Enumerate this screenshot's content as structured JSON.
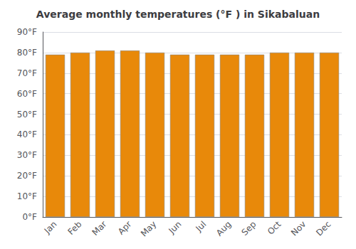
{
  "chart_data": {
    "type": "bar",
    "title": "Average monthly temperatures (°F ) in Sikabaluan",
    "categories": [
      "Jan",
      "Feb",
      "Mar",
      "Apr",
      "May",
      "Jun",
      "Jul",
      "Aug",
      "Sep",
      "Oct",
      "Nov",
      "Dec"
    ],
    "values": [
      79,
      80,
      81,
      81,
      80,
      79,
      79,
      79,
      79,
      80,
      80,
      80
    ],
    "color": "#E8890A",
    "ylim": [
      0,
      90
    ],
    "yticks": [
      {
        "value": 0,
        "label": "0°F"
      },
      {
        "value": 10,
        "label": "10°F"
      },
      {
        "value": 20,
        "label": "20°F"
      },
      {
        "value": 30,
        "label": "30°F"
      },
      {
        "value": 40,
        "label": "40°F"
      },
      {
        "value": 50,
        "label": "50°F"
      },
      {
        "value": 60,
        "label": "60°F"
      },
      {
        "value": 70,
        "label": "70°F"
      },
      {
        "value": 80,
        "label": "80°F"
      },
      {
        "value": 90,
        "label": "90°F"
      }
    ],
    "grid": true
  }
}
